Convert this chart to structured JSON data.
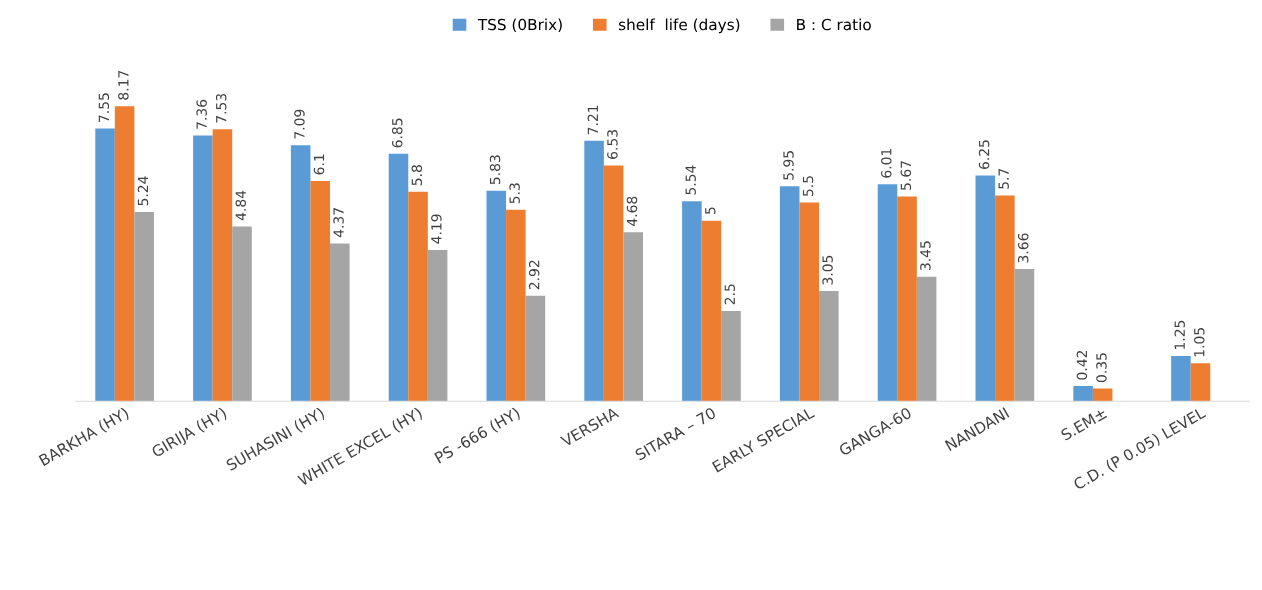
{
  "chart_data": {
    "type": "bar",
    "categories": [
      "BARKHA (HY)",
      "GIRIJA (HY)",
      "SUHASINI (HY)",
      "WHITE EXCEL (HY)",
      "PS -666 (HY)",
      "VERSHA",
      "SITARA – 70",
      "EARLY SPECIAL",
      "GANGA-60",
      "NANDANI",
      "S.EM±",
      "C.D. (P 0.05) LEVEL"
    ],
    "series": [
      {
        "name": "TSS (0Brix)",
        "color": "#5b9bd5",
        "values": [
          7.55,
          7.36,
          7.09,
          6.85,
          5.83,
          7.21,
          5.54,
          5.95,
          6.01,
          6.25,
          0.42,
          1.25
        ],
        "value_labels": [
          "7.55",
          "7.36",
          "7.09",
          "6.85",
          "5.83",
          "7.21",
          "5.54",
          "5.95",
          "6.01",
          "6.25",
          "0.42",
          "1.25"
        ]
      },
      {
        "name": "shelf  life (days)",
        "color": "#ed7d31",
        "values": [
          8.17,
          7.53,
          6.1,
          5.8,
          5.3,
          6.53,
          5,
          5.5,
          5.67,
          5.7,
          0.35,
          1.05
        ],
        "value_labels": [
          "8.17",
          "7.53",
          "6.1",
          "5.8",
          "5.3",
          "6.53",
          "5",
          "5.5",
          "5.67",
          "5.7",
          "0.35",
          "1.05"
        ]
      },
      {
        "name": "B : C ratio",
        "color": "#a5a5a5",
        "values": [
          5.24,
          4.84,
          4.37,
          4.19,
          2.92,
          4.68,
          2.5,
          3.05,
          3.45,
          3.66,
          null,
          null
        ],
        "value_labels": [
          "5.24",
          "4.84",
          "4.37",
          "4.19",
          "2.92",
          "4.68",
          "2.5",
          "3.05",
          "3.45",
          "3.66",
          null,
          null
        ]
      }
    ],
    "legend": "top"
  }
}
